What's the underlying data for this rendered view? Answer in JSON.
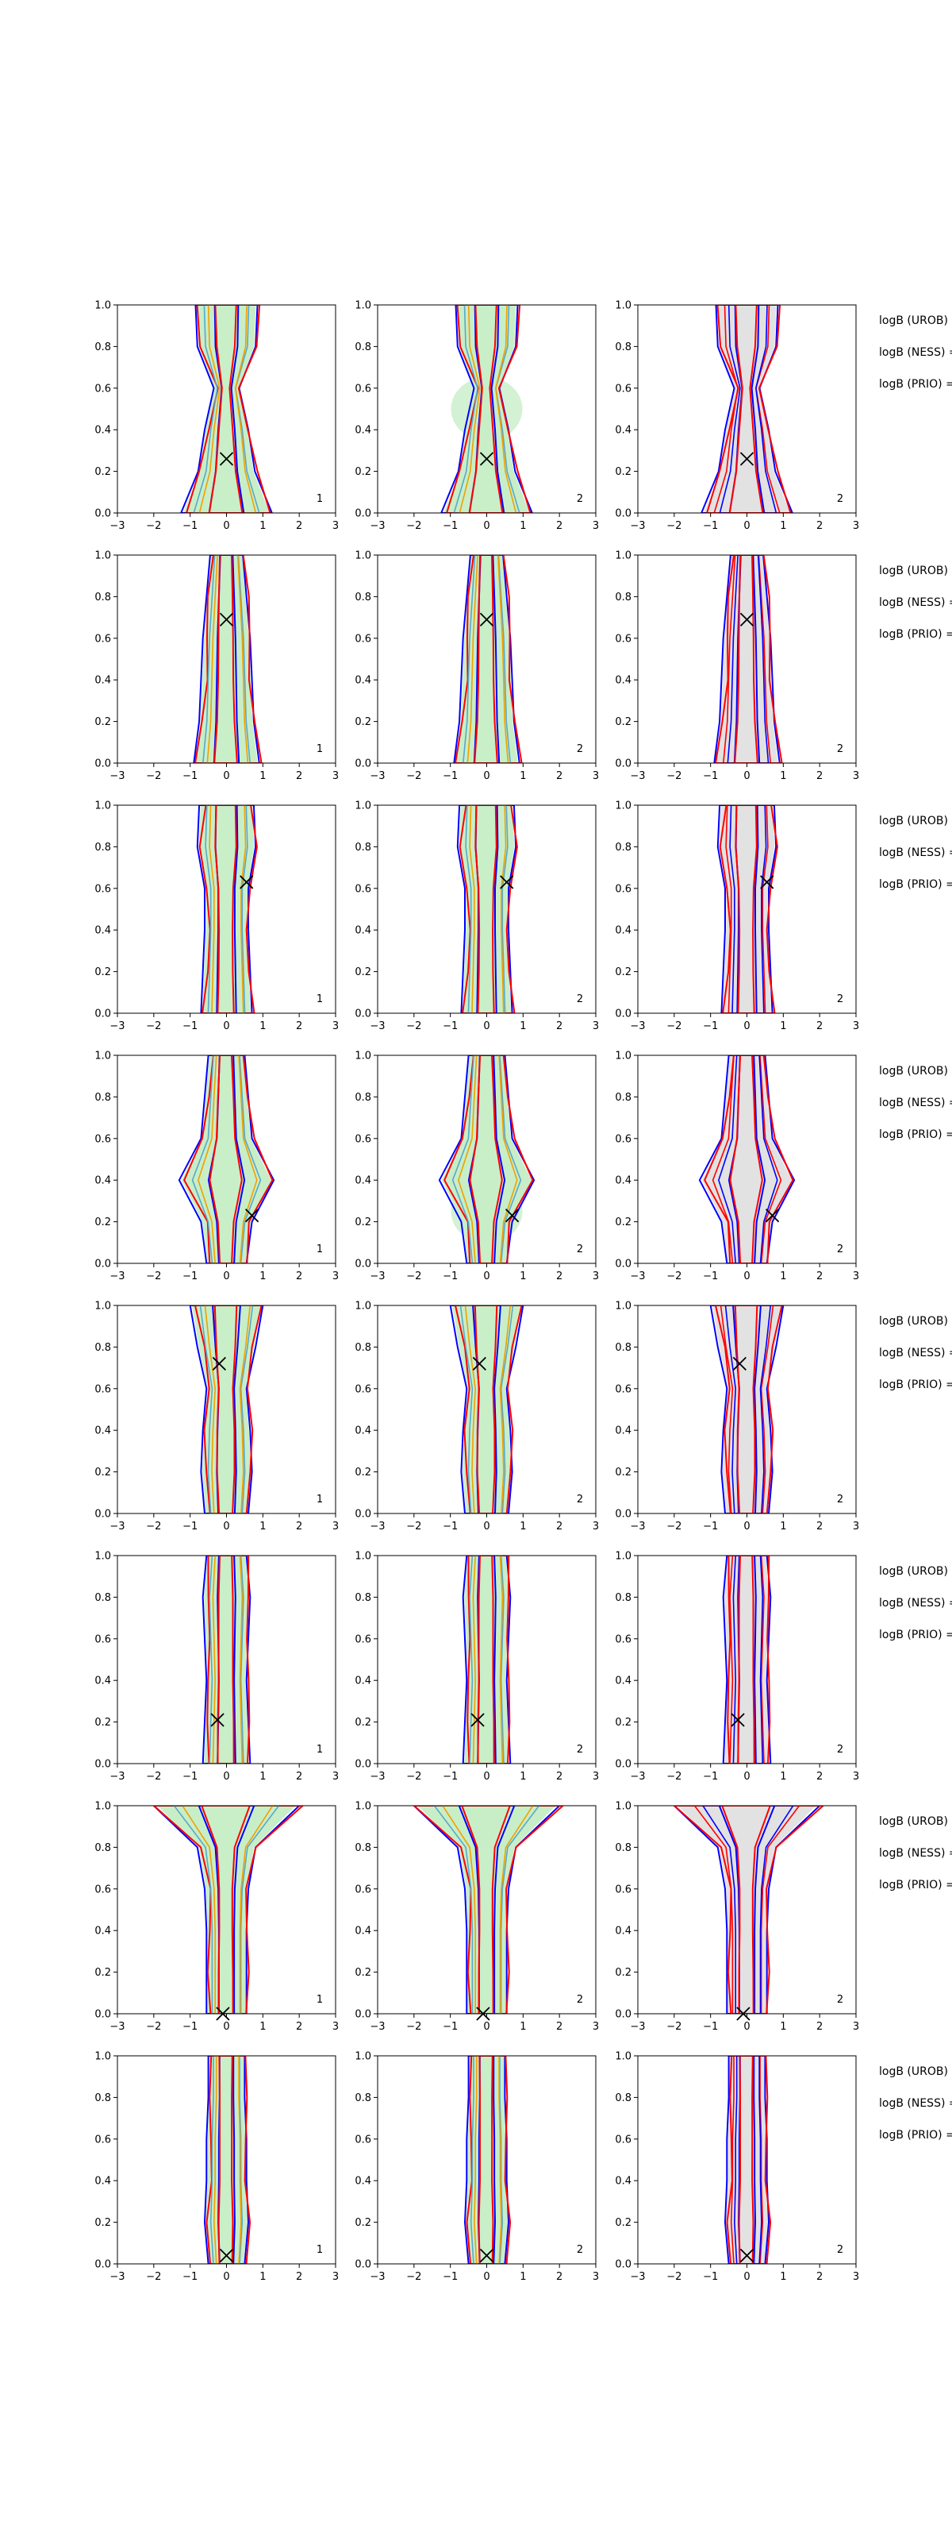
{
  "chart_data": {
    "type": "contour",
    "xlim": [
      -3,
      3
    ],
    "ylim": [
      0,
      1
    ],
    "x_ticks": [
      "−3",
      "−2",
      "−1",
      "0",
      "1",
      "2",
      "3"
    ],
    "y_ticks": [
      "0.0",
      "0.2",
      "0.4",
      "0.6",
      "0.8",
      "1.0"
    ],
    "grid": false,
    "colors": {
      "blue": "#0000ff",
      "red": "#ff0000",
      "fill_green": "#c8eec8",
      "fill_grey": "#e2e2e2",
      "mid_teal": "#59a8c8",
      "mid_orange": "#f0a000",
      "marker": "#000000"
    },
    "side_labels": [
      "logB (UROB)",
      "logB (NESS) =",
      "logB (PRIO) ="
    ],
    "panel_corner_labels": [
      "1",
      "2",
      "2"
    ],
    "rows": [
      {
        "truth": [
          0.0,
          0.26
        ],
        "blob": "center",
        "widths": [
          1.25,
          0.78,
          0.6,
          0.35,
          0.8,
          0.85
        ]
      },
      {
        "truth": [
          0.0,
          0.69
        ],
        "blob": "none",
        "widths": [
          0.9,
          0.75,
          0.7,
          0.65,
          0.55,
          0.45
        ]
      },
      {
        "truth": [
          0.55,
          0.63
        ],
        "blob": "none",
        "widths": [
          0.7,
          0.65,
          0.6,
          0.6,
          0.8,
          0.75
        ]
      },
      {
        "truth": [
          0.7,
          0.23
        ],
        "blob": "low",
        "widths": [
          0.55,
          0.7,
          1.3,
          0.7,
          0.6,
          0.5
        ]
      },
      {
        "truth": [
          -0.2,
          0.72
        ],
        "blob": "none",
        "widths": [
          0.6,
          0.7,
          0.65,
          0.55,
          0.8,
          1.0
        ]
      },
      {
        "truth": [
          -0.25,
          0.21
        ],
        "blob": "none",
        "widths": [
          0.65,
          0.6,
          0.55,
          0.6,
          0.65,
          0.55
        ]
      },
      {
        "truth": [
          -0.1,
          0.0
        ],
        "blob": "top",
        "widths": [
          0.55,
          0.55,
          0.55,
          0.6,
          0.8,
          2.0
        ]
      },
      {
        "truth": [
          0.0,
          0.04
        ],
        "blob": "none",
        "widths": [
          0.5,
          0.6,
          0.55,
          0.55,
          0.5,
          0.5
        ]
      }
    ]
  }
}
